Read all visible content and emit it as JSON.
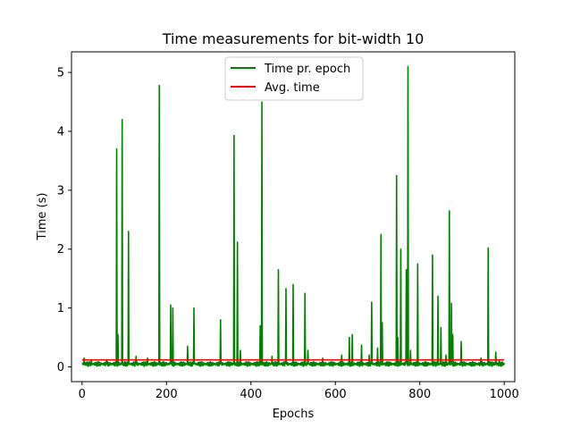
{
  "chart_data": {
    "type": "line",
    "title": "Time measurements for bit-width 10",
    "xlabel": "Epochs",
    "ylabel": "Time (s)",
    "xlim": [
      -25,
      1025
    ],
    "ylim": [
      -0.25,
      5.35
    ],
    "xticks": [
      0,
      200,
      400,
      600,
      800,
      1000
    ],
    "yticks": [
      0,
      1,
      2,
      3,
      4,
      5
    ],
    "grid": false,
    "legend_position": "upper center",
    "series": [
      {
        "name": "Time pr. epoch",
        "color": "#008000",
        "baseline": 0.05,
        "spikes": [
          [
            5,
            0.15
          ],
          [
            22,
            0.12
          ],
          [
            58,
            0.12
          ],
          [
            82,
            3.7
          ],
          [
            85,
            0.55
          ],
          [
            95,
            4.2
          ],
          [
            110,
            2.3
          ],
          [
            128,
            0.18
          ],
          [
            155,
            0.15
          ],
          [
            183,
            4.78
          ],
          [
            210,
            1.05
          ],
          [
            215,
            1.0
          ],
          [
            250,
            0.35
          ],
          [
            265,
            1.0
          ],
          [
            328,
            0.8
          ],
          [
            360,
            3.93
          ],
          [
            368,
            2.12
          ],
          [
            375,
            0.28
          ],
          [
            422,
            0.7
          ],
          [
            426,
            4.5
          ],
          [
            450,
            0.18
          ],
          [
            465,
            1.65
          ],
          [
            483,
            1.33
          ],
          [
            500,
            1.4
          ],
          [
            528,
            1.25
          ],
          [
            535,
            0.28
          ],
          [
            570,
            0.15
          ],
          [
            615,
            0.2
          ],
          [
            633,
            0.5
          ],
          [
            640,
            0.55
          ],
          [
            662,
            0.37
          ],
          [
            680,
            0.2
          ],
          [
            686,
            1.1
          ],
          [
            700,
            0.32
          ],
          [
            708,
            2.25
          ],
          [
            711,
            0.75
          ],
          [
            745,
            3.25
          ],
          [
            748,
            0.5
          ],
          [
            755,
            2.0
          ],
          [
            768,
            1.65
          ],
          [
            772,
            5.1
          ],
          [
            778,
            0.28
          ],
          [
            795,
            1.75
          ],
          [
            830,
            1.9
          ],
          [
            843,
            1.2
          ],
          [
            850,
            0.67
          ],
          [
            862,
            0.2
          ],
          [
            870,
            2.65
          ],
          [
            875,
            1.08
          ],
          [
            878,
            0.55
          ],
          [
            898,
            0.43
          ],
          [
            945,
            0.15
          ],
          [
            962,
            2.02
          ],
          [
            980,
            0.25
          ],
          [
            988,
            0.12
          ]
        ]
      },
      {
        "name": "Avg. time",
        "color": "#ff0000",
        "x": [
          0,
          1000
        ],
        "y": [
          0.12,
          0.12
        ]
      }
    ]
  }
}
